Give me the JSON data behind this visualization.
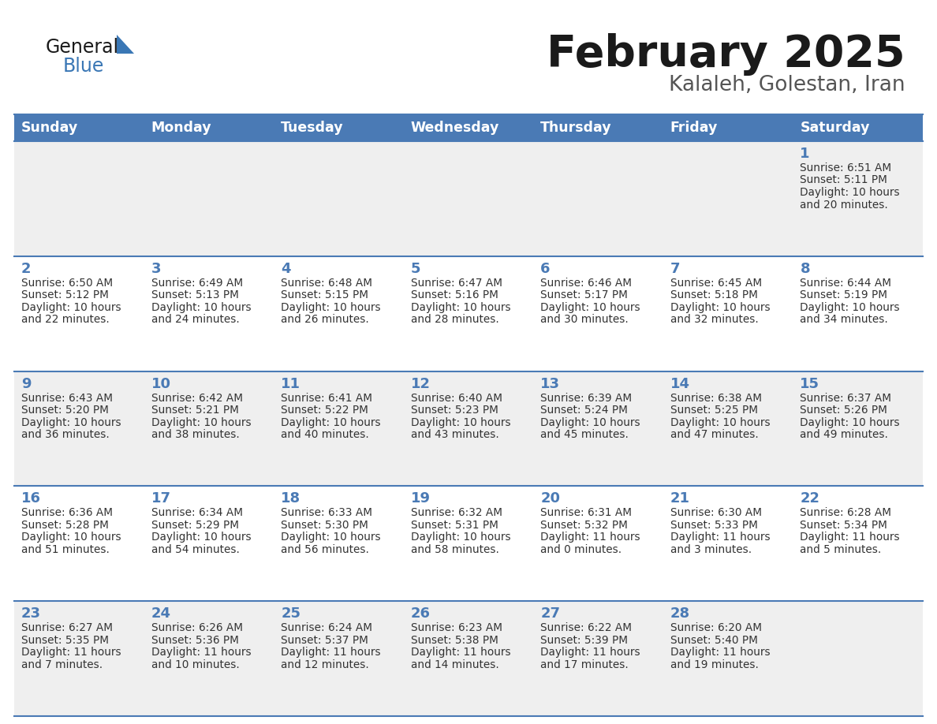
{
  "title": "February 2025",
  "subtitle": "Kalaleh, Golestan, Iran",
  "header_bg": "#4a7ab5",
  "header_text_color": "#ffffff",
  "cell_bg_light": "#efefef",
  "cell_bg_white": "#ffffff",
  "day_headers": [
    "Sunday",
    "Monday",
    "Tuesday",
    "Wednesday",
    "Thursday",
    "Friday",
    "Saturday"
  ],
  "title_color": "#1a1a1a",
  "subtitle_color": "#555555",
  "day_num_color": "#4a7ab5",
  "cell_text_color": "#333333",
  "line_color": "#4a7ab5",
  "logo_general_color": "#1a1a1a",
  "logo_blue_color": "#3a77b5",
  "logo_triangle_color": "#3a77b5",
  "days": [
    {
      "day": 1,
      "col": 6,
      "row": 0,
      "sunrise": "6:51 AM",
      "sunset": "5:11 PM",
      "daylight": "10 hours and 20 minutes."
    },
    {
      "day": 2,
      "col": 0,
      "row": 1,
      "sunrise": "6:50 AM",
      "sunset": "5:12 PM",
      "daylight": "10 hours and 22 minutes."
    },
    {
      "day": 3,
      "col": 1,
      "row": 1,
      "sunrise": "6:49 AM",
      "sunset": "5:13 PM",
      "daylight": "10 hours and 24 minutes."
    },
    {
      "day": 4,
      "col": 2,
      "row": 1,
      "sunrise": "6:48 AM",
      "sunset": "5:15 PM",
      "daylight": "10 hours and 26 minutes."
    },
    {
      "day": 5,
      "col": 3,
      "row": 1,
      "sunrise": "6:47 AM",
      "sunset": "5:16 PM",
      "daylight": "10 hours and 28 minutes."
    },
    {
      "day": 6,
      "col": 4,
      "row": 1,
      "sunrise": "6:46 AM",
      "sunset": "5:17 PM",
      "daylight": "10 hours and 30 minutes."
    },
    {
      "day": 7,
      "col": 5,
      "row": 1,
      "sunrise": "6:45 AM",
      "sunset": "5:18 PM",
      "daylight": "10 hours and 32 minutes."
    },
    {
      "day": 8,
      "col": 6,
      "row": 1,
      "sunrise": "6:44 AM",
      "sunset": "5:19 PM",
      "daylight": "10 hours and 34 minutes."
    },
    {
      "day": 9,
      "col": 0,
      "row": 2,
      "sunrise": "6:43 AM",
      "sunset": "5:20 PM",
      "daylight": "10 hours and 36 minutes."
    },
    {
      "day": 10,
      "col": 1,
      "row": 2,
      "sunrise": "6:42 AM",
      "sunset": "5:21 PM",
      "daylight": "10 hours and 38 minutes."
    },
    {
      "day": 11,
      "col": 2,
      "row": 2,
      "sunrise": "6:41 AM",
      "sunset": "5:22 PM",
      "daylight": "10 hours and 40 minutes."
    },
    {
      "day": 12,
      "col": 3,
      "row": 2,
      "sunrise": "6:40 AM",
      "sunset": "5:23 PM",
      "daylight": "10 hours and 43 minutes."
    },
    {
      "day": 13,
      "col": 4,
      "row": 2,
      "sunrise": "6:39 AM",
      "sunset": "5:24 PM",
      "daylight": "10 hours and 45 minutes."
    },
    {
      "day": 14,
      "col": 5,
      "row": 2,
      "sunrise": "6:38 AM",
      "sunset": "5:25 PM",
      "daylight": "10 hours and 47 minutes."
    },
    {
      "day": 15,
      "col": 6,
      "row": 2,
      "sunrise": "6:37 AM",
      "sunset": "5:26 PM",
      "daylight": "10 hours and 49 minutes."
    },
    {
      "day": 16,
      "col": 0,
      "row": 3,
      "sunrise": "6:36 AM",
      "sunset": "5:28 PM",
      "daylight": "10 hours and 51 minutes."
    },
    {
      "day": 17,
      "col": 1,
      "row": 3,
      "sunrise": "6:34 AM",
      "sunset": "5:29 PM",
      "daylight": "10 hours and 54 minutes."
    },
    {
      "day": 18,
      "col": 2,
      "row": 3,
      "sunrise": "6:33 AM",
      "sunset": "5:30 PM",
      "daylight": "10 hours and 56 minutes."
    },
    {
      "day": 19,
      "col": 3,
      "row": 3,
      "sunrise": "6:32 AM",
      "sunset": "5:31 PM",
      "daylight": "10 hours and 58 minutes."
    },
    {
      "day": 20,
      "col": 4,
      "row": 3,
      "sunrise": "6:31 AM",
      "sunset": "5:32 PM",
      "daylight": "11 hours and 0 minutes."
    },
    {
      "day": 21,
      "col": 5,
      "row": 3,
      "sunrise": "6:30 AM",
      "sunset": "5:33 PM",
      "daylight": "11 hours and 3 minutes."
    },
    {
      "day": 22,
      "col": 6,
      "row": 3,
      "sunrise": "6:28 AM",
      "sunset": "5:34 PM",
      "daylight": "11 hours and 5 minutes."
    },
    {
      "day": 23,
      "col": 0,
      "row": 4,
      "sunrise": "6:27 AM",
      "sunset": "5:35 PM",
      "daylight": "11 hours and 7 minutes."
    },
    {
      "day": 24,
      "col": 1,
      "row": 4,
      "sunrise": "6:26 AM",
      "sunset": "5:36 PM",
      "daylight": "11 hours and 10 minutes."
    },
    {
      "day": 25,
      "col": 2,
      "row": 4,
      "sunrise": "6:24 AM",
      "sunset": "5:37 PM",
      "daylight": "11 hours and 12 minutes."
    },
    {
      "day": 26,
      "col": 3,
      "row": 4,
      "sunrise": "6:23 AM",
      "sunset": "5:38 PM",
      "daylight": "11 hours and 14 minutes."
    },
    {
      "day": 27,
      "col": 4,
      "row": 4,
      "sunrise": "6:22 AM",
      "sunset": "5:39 PM",
      "daylight": "11 hours and 17 minutes."
    },
    {
      "day": 28,
      "col": 5,
      "row": 4,
      "sunrise": "6:20 AM",
      "sunset": "5:40 PM",
      "daylight": "11 hours and 19 minutes."
    }
  ]
}
